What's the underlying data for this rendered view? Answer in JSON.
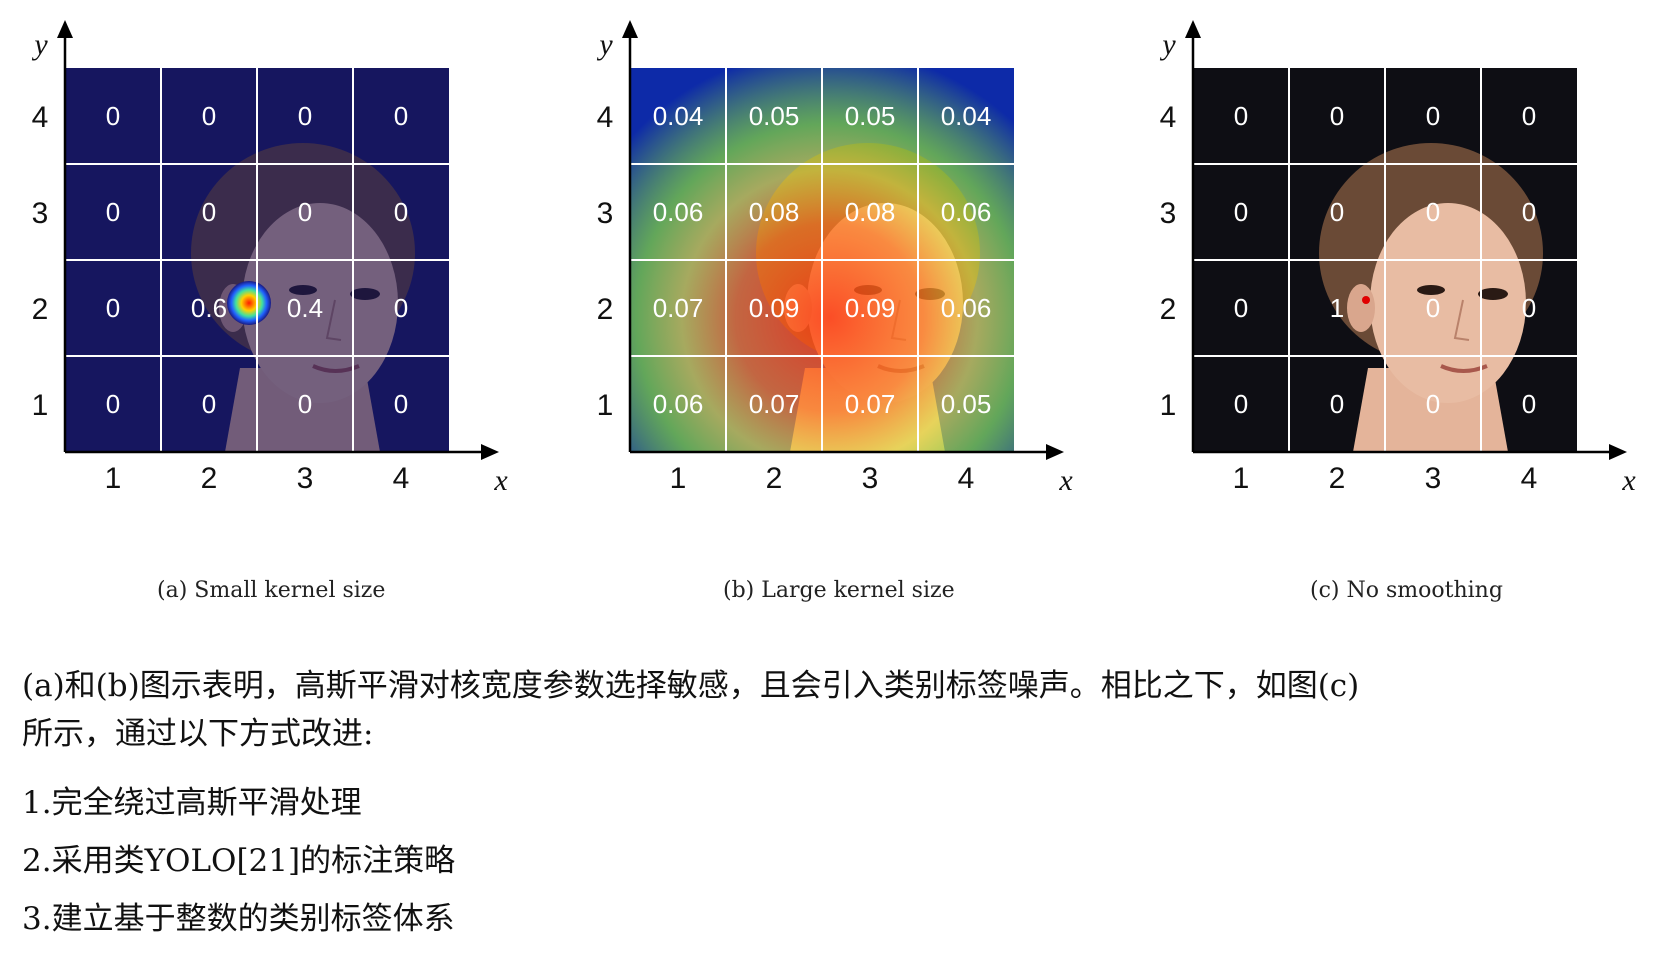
{
  "panels": [
    {
      "id": "a",
      "caption": "(a) Small kernel size",
      "style": "small",
      "x_label": "x",
      "y_label": "y",
      "x_ticks": [
        "1",
        "2",
        "3",
        "4"
      ],
      "y_ticks": [
        "1",
        "2",
        "3",
        "4"
      ],
      "grid_values": [
        [
          "0",
          "0",
          "0",
          "0"
        ],
        [
          "0",
          "0",
          "0",
          "0"
        ],
        [
          "0",
          "0.6",
          "0.4",
          "0"
        ],
        [
          "0",
          "0",
          "0",
          "0"
        ]
      ],
      "colors": {
        "overlay": "#14145e",
        "hot": "#ff2a00"
      }
    },
    {
      "id": "b",
      "caption": "(b) Large kernel size",
      "style": "large",
      "x_label": "x",
      "y_label": "y",
      "x_ticks": [
        "1",
        "2",
        "3",
        "4"
      ],
      "y_ticks": [
        "1",
        "2",
        "3",
        "4"
      ],
      "grid_values": [
        [
          "0.04",
          "0.05",
          "0.05",
          "0.04"
        ],
        [
          "0.06",
          "0.08",
          "0.08",
          "0.06"
        ],
        [
          "0.07",
          "0.09",
          "0.09",
          "0.06"
        ],
        [
          "0.06",
          "0.07",
          "0.07",
          "0.05"
        ]
      ],
      "colors": {
        "outer": "#0d2aa8",
        "mid": "#7fd040",
        "inner": "#ff3a10"
      }
    },
    {
      "id": "c",
      "caption": "(c) No smoothing",
      "style": "none",
      "x_label": "x",
      "y_label": "y",
      "x_ticks": [
        "1",
        "2",
        "3",
        "4"
      ],
      "y_ticks": [
        "1",
        "2",
        "3",
        "4"
      ],
      "grid_values": [
        [
          "0",
          "0",
          "0",
          "0"
        ],
        [
          "0",
          "0",
          "0",
          "0"
        ],
        [
          "0",
          "1",
          "0",
          "0"
        ],
        [
          "0",
          "0",
          "0",
          "0"
        ]
      ],
      "colors": {
        "background": "#0e0e14",
        "point": "#e00000"
      }
    }
  ],
  "text": {
    "line1": "(a)和(b)图示表明，高斯平滑对核宽度参数选择敏感，且会引入类别标签噪声。相比之下，如图(c)",
    "line2": "所示，通过以下方式改进:",
    "items": [
      "1.完全绕过高斯平滑处理",
      "2.采用类YOLO[21]的标注策略",
      "3.建立基于整数的类别标签体系"
    ]
  }
}
